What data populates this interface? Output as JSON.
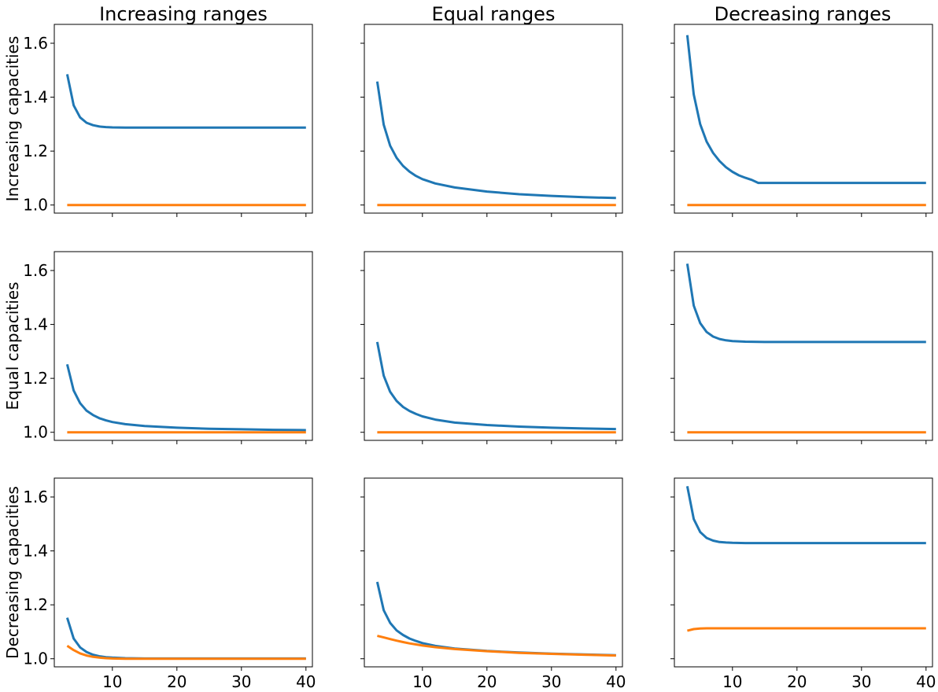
{
  "figure": {
    "col_titles": [
      "Increasing ranges",
      "Equal ranges",
      "Decreasing ranges"
    ],
    "row_labels": [
      "Increasing capacities",
      "Equal capacities",
      "Decreasing capacities"
    ],
    "colors": {
      "series_a": "#1f77b4",
      "series_b": "#ff7f0e"
    }
  },
  "chart_data": [
    {
      "type": "line",
      "row": 0,
      "col": 0,
      "xlim": [
        1,
        41
      ],
      "ylim": [
        0.97,
        1.67
      ],
      "xticks": [
        10,
        20,
        30,
        40
      ],
      "yticks": [
        1.0,
        1.2,
        1.4,
        1.6
      ],
      "x": [
        3,
        4,
        5,
        6,
        7,
        8,
        9,
        10,
        12,
        15,
        20,
        25,
        30,
        35,
        40
      ],
      "series": [
        {
          "values": [
            1.485,
            1.37,
            1.325,
            1.305,
            1.296,
            1.291,
            1.289,
            1.288,
            1.287,
            1.287,
            1.287,
            1.287,
            1.287,
            1.287,
            1.287
          ]
        },
        {
          "values": [
            1.0,
            1.0,
            1.0,
            1.0,
            1.0,
            1.0,
            1.0,
            1.0,
            1.0,
            1.0,
            1.0,
            1.0,
            1.0,
            1.0,
            1.0
          ]
        }
      ]
    },
    {
      "type": "line",
      "row": 0,
      "col": 1,
      "xlim": [
        1,
        41
      ],
      "ylim": [
        0.97,
        1.67
      ],
      "xticks": [
        10,
        20,
        30,
        40
      ],
      "yticks": [
        1.0,
        1.2,
        1.4,
        1.6
      ],
      "x": [
        3,
        4,
        5,
        6,
        7,
        8,
        9,
        10,
        12,
        15,
        20,
        25,
        30,
        35,
        40
      ],
      "series": [
        {
          "values": [
            1.458,
            1.298,
            1.22,
            1.175,
            1.145,
            1.124,
            1.108,
            1.096,
            1.08,
            1.065,
            1.05,
            1.04,
            1.034,
            1.029,
            1.026
          ]
        },
        {
          "values": [
            1.0,
            1.0,
            1.0,
            1.0,
            1.0,
            1.0,
            1.0,
            1.0,
            1.0,
            1.0,
            1.0,
            1.0,
            1.0,
            1.0,
            1.0
          ]
        }
      ]
    },
    {
      "type": "line",
      "row": 0,
      "col": 2,
      "xlim": [
        1,
        41
      ],
      "ylim": [
        0.97,
        1.67
      ],
      "xticks": [
        10,
        20,
        30,
        40
      ],
      "yticks": [
        1.0,
        1.2,
        1.4,
        1.6
      ],
      "x": [
        3,
        4,
        5,
        6,
        7,
        8,
        9,
        10,
        11,
        12,
        13,
        14,
        20,
        30,
        40
      ],
      "series": [
        {
          "values": [
            1.63,
            1.41,
            1.3,
            1.235,
            1.193,
            1.163,
            1.14,
            1.123,
            1.11,
            1.101,
            1.093,
            1.082,
            1.082,
            1.082,
            1.082
          ]
        },
        {
          "values": [
            1.0,
            1.0,
            1.0,
            1.0,
            1.0,
            1.0,
            1.0,
            1.0,
            1.0,
            1.0,
            1.0,
            1.0,
            1.0,
            1.0,
            1.0
          ]
        }
      ]
    },
    {
      "type": "line",
      "row": 1,
      "col": 0,
      "xlim": [
        1,
        41
      ],
      "ylim": [
        0.97,
        1.67
      ],
      "xticks": [
        10,
        20,
        30,
        40
      ],
      "yticks": [
        1.0,
        1.2,
        1.4,
        1.6
      ],
      "x": [
        3,
        4,
        5,
        6,
        7,
        8,
        9,
        10,
        12,
        15,
        20,
        25,
        30,
        35,
        40
      ],
      "series": [
        {
          "values": [
            1.252,
            1.155,
            1.108,
            1.08,
            1.064,
            1.052,
            1.044,
            1.038,
            1.03,
            1.023,
            1.017,
            1.013,
            1.011,
            1.009,
            1.008
          ]
        },
        {
          "values": [
            1.0,
            1.0,
            1.0,
            1.0,
            1.0,
            1.0,
            1.0,
            1.0,
            1.0,
            1.0,
            1.0,
            1.0,
            1.0,
            1.0,
            1.0
          ]
        }
      ]
    },
    {
      "type": "line",
      "row": 1,
      "col": 1,
      "xlim": [
        1,
        41
      ],
      "ylim": [
        0.97,
        1.67
      ],
      "xticks": [
        10,
        20,
        30,
        40
      ],
      "yticks": [
        1.0,
        1.2,
        1.4,
        1.6
      ],
      "x": [
        3,
        4,
        5,
        6,
        7,
        8,
        9,
        10,
        12,
        15,
        20,
        25,
        30,
        35,
        40
      ],
      "series": [
        {
          "values": [
            1.335,
            1.21,
            1.15,
            1.116,
            1.094,
            1.079,
            1.068,
            1.059,
            1.047,
            1.036,
            1.027,
            1.021,
            1.017,
            1.014,
            1.012
          ]
        },
        {
          "values": [
            1.0,
            1.0,
            1.0,
            1.0,
            1.0,
            1.0,
            1.0,
            1.0,
            1.0,
            1.0,
            1.0,
            1.0,
            1.0,
            1.0,
            1.0
          ]
        }
      ]
    },
    {
      "type": "line",
      "row": 1,
      "col": 2,
      "xlim": [
        1,
        41
      ],
      "ylim": [
        0.97,
        1.67
      ],
      "xticks": [
        10,
        20,
        30,
        40
      ],
      "yticks": [
        1.0,
        1.2,
        1.4,
        1.6
      ],
      "x": [
        3,
        4,
        5,
        6,
        7,
        8,
        9,
        10,
        12,
        15,
        20,
        25,
        30,
        35,
        40
      ],
      "series": [
        {
          "values": [
            1.625,
            1.47,
            1.405,
            1.372,
            1.355,
            1.346,
            1.341,
            1.338,
            1.336,
            1.335,
            1.335,
            1.335,
            1.335,
            1.335,
            1.335
          ]
        },
        {
          "values": [
            1.0,
            1.0,
            1.0,
            1.0,
            1.0,
            1.0,
            1.0,
            1.0,
            1.0,
            1.0,
            1.0,
            1.0,
            1.0,
            1.0,
            1.0
          ]
        }
      ]
    },
    {
      "type": "line",
      "row": 2,
      "col": 0,
      "xlim": [
        1,
        41
      ],
      "ylim": [
        0.97,
        1.67
      ],
      "xticks": [
        10,
        20,
        30,
        40
      ],
      "yticks": [
        1.0,
        1.2,
        1.4,
        1.6
      ],
      "x": [
        3,
        4,
        5,
        6,
        7,
        8,
        9,
        10,
        12,
        15,
        20,
        25,
        30,
        35,
        40
      ],
      "series": [
        {
          "values": [
            1.152,
            1.075,
            1.042,
            1.025,
            1.015,
            1.009,
            1.006,
            1.004,
            1.002,
            1.001,
            1.001,
            1.001,
            1.001,
            1.001,
            1.001
          ]
        },
        {
          "values": [
            1.048,
            1.032,
            1.02,
            1.012,
            1.007,
            1.004,
            1.002,
            1.001,
            1.0,
            1.0,
            1.0,
            1.0,
            1.0,
            1.0,
            1.0
          ]
        }
      ]
    },
    {
      "type": "line",
      "row": 2,
      "col": 1,
      "xlim": [
        1,
        41
      ],
      "ylim": [
        0.97,
        1.67
      ],
      "xticks": [
        10,
        20,
        30,
        40
      ],
      "yticks": [
        1.0,
        1.2,
        1.4,
        1.6
      ],
      "x": [
        3,
        4,
        5,
        6,
        7,
        8,
        9,
        10,
        12,
        15,
        20,
        25,
        30,
        35,
        40
      ],
      "series": [
        {
          "values": [
            1.285,
            1.18,
            1.133,
            1.105,
            1.088,
            1.075,
            1.066,
            1.058,
            1.048,
            1.038,
            1.029,
            1.023,
            1.019,
            1.016,
            1.013
          ]
        },
        {
          "values": [
            1.085,
            1.079,
            1.073,
            1.067,
            1.062,
            1.057,
            1.053,
            1.049,
            1.043,
            1.036,
            1.028,
            1.022,
            1.018,
            1.015,
            1.012
          ]
        }
      ]
    },
    {
      "type": "line",
      "row": 2,
      "col": 2,
      "xlim": [
        1,
        41
      ],
      "ylim": [
        0.97,
        1.67
      ],
      "xticks": [
        10,
        20,
        30,
        40
      ],
      "yticks": [
        1.0,
        1.2,
        1.4,
        1.6
      ],
      "x": [
        3,
        4,
        5,
        6,
        7,
        8,
        9,
        10,
        12,
        15,
        20,
        25,
        30,
        35,
        40
      ],
      "series": [
        {
          "values": [
            1.64,
            1.518,
            1.47,
            1.448,
            1.438,
            1.433,
            1.431,
            1.43,
            1.429,
            1.429,
            1.429,
            1.429,
            1.429,
            1.429,
            1.429
          ]
        },
        {
          "values": [
            1.104,
            1.11,
            1.112,
            1.113,
            1.113,
            1.113,
            1.113,
            1.113,
            1.113,
            1.113,
            1.113,
            1.113,
            1.113,
            1.113,
            1.113
          ]
        }
      ]
    }
  ]
}
